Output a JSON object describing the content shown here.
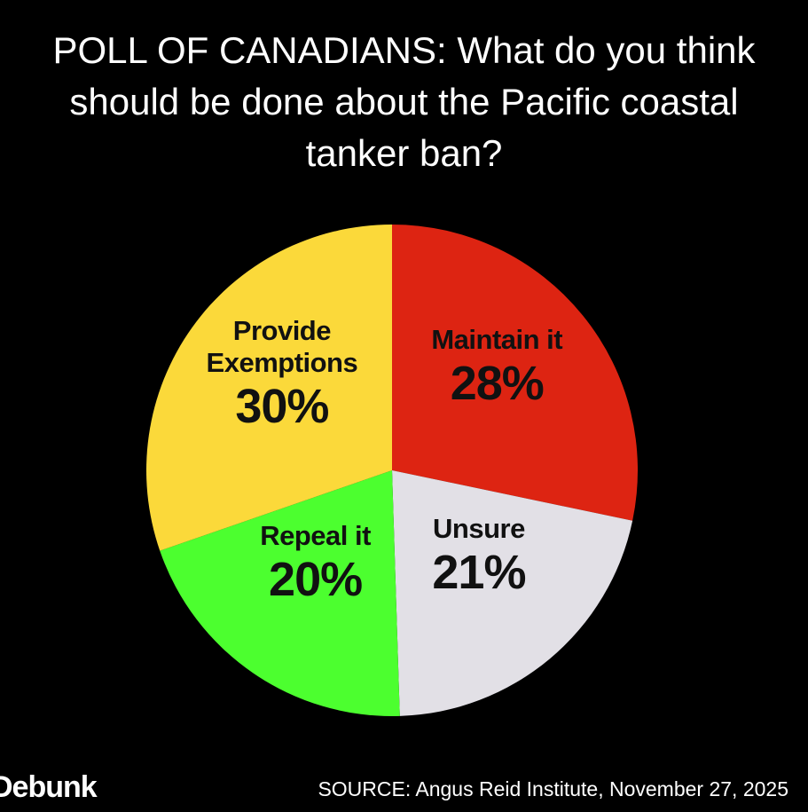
{
  "chart_data": {
    "type": "pie",
    "title": "POLL OF CANADIANS: What do you think should be done about the Pacific coastal tanker ban?",
    "categories": [
      "Maintain it",
      "Unsure",
      "Repeal it",
      "Provide Exemptions"
    ],
    "values": [
      28,
      21,
      20,
      30
    ],
    "value_labels": [
      "28%",
      "21%",
      "20%",
      "30%"
    ],
    "colors": [
      "#dd2412",
      "#e2e0e6",
      "#4cff2f",
      "#fbd93a"
    ],
    "start_angle": 0,
    "direction": "clockwise"
  },
  "footer": {
    "logo": "Debunk",
    "source": "SOURCE: Angus Reid Institute, November 27, 2025"
  }
}
